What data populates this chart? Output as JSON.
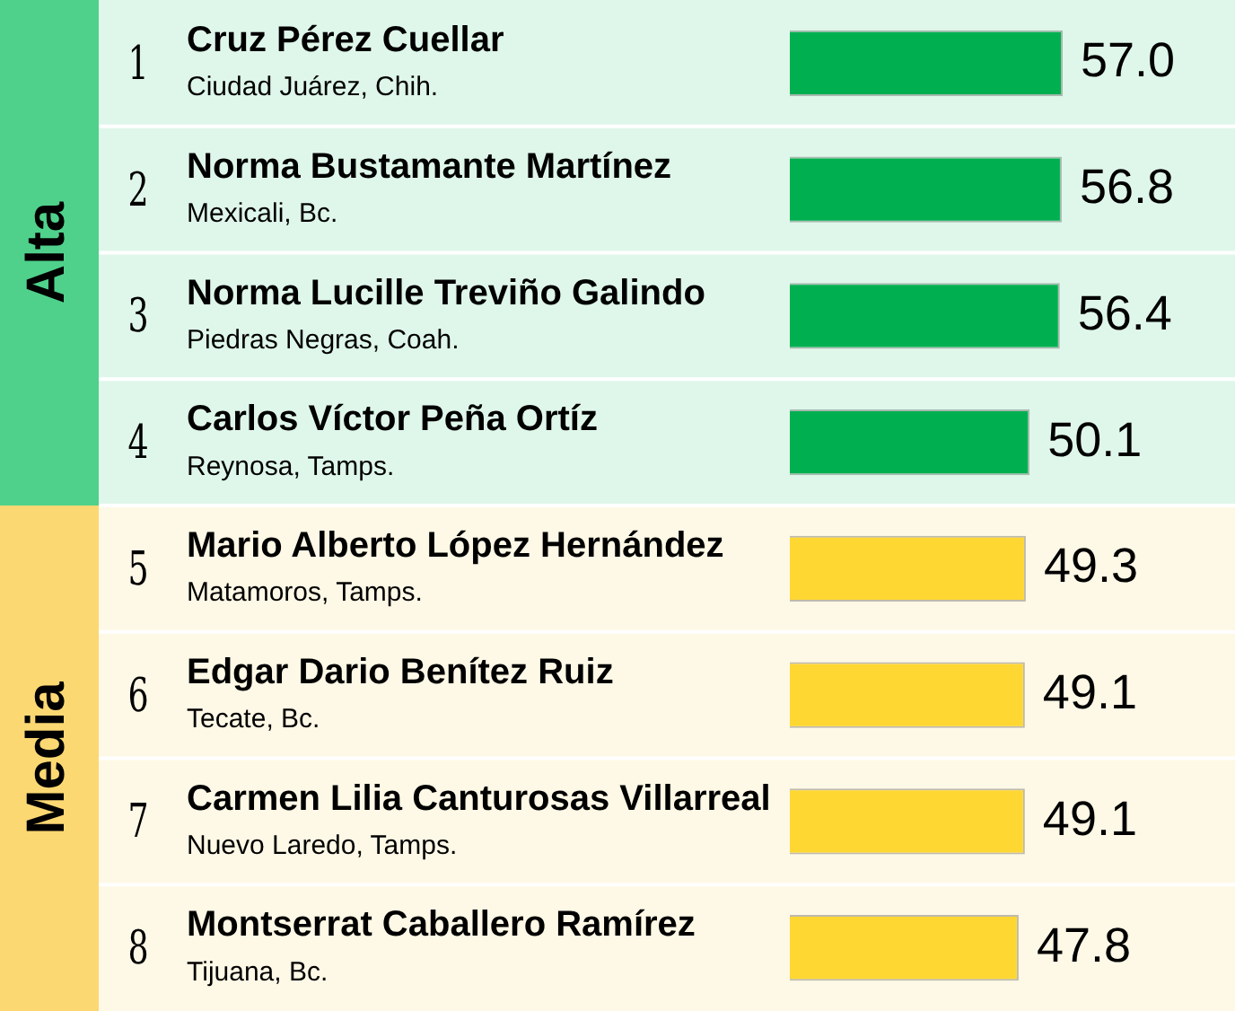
{
  "chart_data": {
    "type": "bar",
    "orientation": "horizontal",
    "legend": false,
    "tick_labels": "y",
    "categories": [
      "1\nCruz Pérez Cuellar\nCiudad Juárez, Chih.",
      "2\nNorma Bustamante Martínez\nMexicali, Bc.",
      "3\nNorma Lucille Treviño Galindo\nPiedras Negras, Coah.",
      "4\nCarlos Víctor Peña Ortíz\nReynosa, Tamps.",
      "5\nMario Alberto López Hernández\nMatamoros, Tamps.",
      "6\nEdgar Dario Benítez Ruiz\nTecate, Bc.",
      "7\nCarmen Lilia Canturosas Villarreal\nNuevo Laredo, Tamps.",
      "8\nMontserrat Caballero Ramírez\nTijuana, Bc."
    ],
    "values": [
      57.0,
      56.8,
      56.4,
      50.1,
      49.3,
      49.1,
      49.1,
      47.8
    ],
    "value_labels": [
      "57.0",
      "56.8",
      "56.4",
      "50.1",
      "49.3",
      "49.1",
      "49.1",
      "47.8"
    ],
    "colors": [
      "#00b050",
      "#00b050",
      "#00b050",
      "#00b050",
      "#ffd732",
      "#ffd732",
      "#ffd732",
      "#ffd732"
    ],
    "bands": [
      {
        "axis": "y",
        "from": "1\nCruz Pérez Cuellar\nCiudad Juárez, Chih.",
        "to": "4\nCarlos Víctor Peña Ortíz\nReynosa, Tamps.",
        "label": "Alta",
        "color": "#4fd18b"
      },
      {
        "axis": "y",
        "from": "5\nMario Alberto López Hernández\nMatamoros, Tamps.",
        "to": "8\nMontserrat Caballero Ramírez\nTijuana, Bc.",
        "label": "Media",
        "color": "#fcd873"
      }
    ]
  }
}
